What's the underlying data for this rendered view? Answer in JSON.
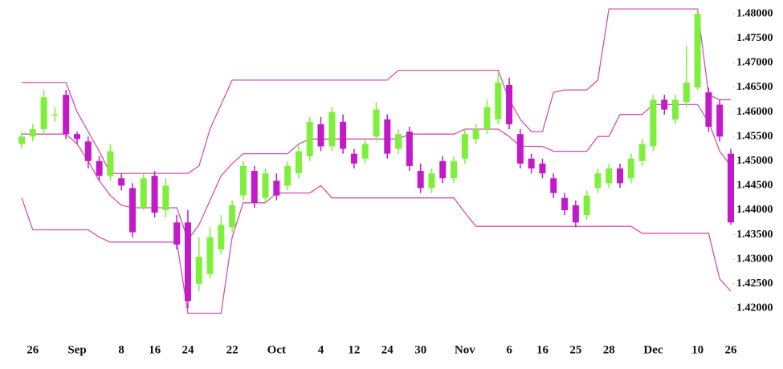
{
  "chart_data": {
    "type": "candlestick",
    "categories": [
      null,
      "26",
      null,
      null,
      null,
      "Sep",
      null,
      null,
      null,
      "8",
      null,
      null,
      "16",
      null,
      null,
      "24",
      null,
      null,
      null,
      "22",
      null,
      null,
      null,
      "Oct",
      null,
      null,
      null,
      "4",
      null,
      null,
      "12",
      null,
      null,
      "24",
      null,
      null,
      "30",
      null,
      null,
      null,
      "Nov",
      null,
      null,
      null,
      "6",
      null,
      null,
      "16",
      null,
      null,
      "25",
      null,
      null,
      "28",
      null,
      null,
      null,
      "Dec",
      null,
      null,
      null,
      "10",
      null,
      null,
      "26"
    ],
    "open": [
      1.4535,
      1.455,
      1.4565,
      1.4595,
      1.4635,
      1.4555,
      1.454,
      1.45,
      1.447,
      1.4465,
      1.4445,
      1.4405,
      1.447,
      1.44,
      1.4375,
      1.4375,
      1.425,
      1.427,
      1.432,
      1.4365,
      1.443,
      1.448,
      1.4425,
      1.446,
      1.445,
      1.4475,
      1.451,
      1.4575,
      1.453,
      1.458,
      1.4515,
      1.4505,
      1.455,
      1.4585,
      1.4525,
      1.456,
      1.448,
      1.4445,
      1.45,
      1.4465,
      1.4505,
      1.4545,
      1.4565,
      1.4585,
      1.4655,
      1.4555,
      1.4505,
      1.4495,
      1.4465,
      1.4425,
      1.441,
      1.439,
      1.4445,
      1.4455,
      1.4485,
      1.4465,
      1.45,
      1.453,
      1.4625,
      1.4585,
      1.462,
      1.465,
      1.464,
      1.4615,
      1.4515
    ],
    "high": [
      1.456,
      1.4575,
      1.4645,
      1.461,
      1.4645,
      1.456,
      1.455,
      1.451,
      1.4535,
      1.4475,
      1.4455,
      1.4475,
      1.448,
      1.4465,
      1.439,
      1.44,
      1.4345,
      1.4365,
      1.439,
      1.442,
      1.45,
      1.449,
      1.4485,
      1.4475,
      1.45,
      1.4535,
      1.459,
      1.459,
      1.461,
      1.4595,
      1.4525,
      1.4545,
      1.462,
      1.4595,
      1.4565,
      1.457,
      1.4495,
      1.4485,
      1.451,
      1.451,
      1.4565,
      1.4575,
      1.4625,
      1.468,
      1.467,
      1.4565,
      1.4515,
      1.4505,
      1.4475,
      1.4435,
      1.442,
      1.444,
      1.4485,
      1.4495,
      1.4495,
      1.4515,
      1.4545,
      1.4635,
      1.4635,
      1.4635,
      1.4735,
      1.4805,
      1.465,
      1.4625,
      1.4525
    ],
    "low": [
      1.4525,
      1.454,
      1.4555,
      1.458,
      1.4545,
      1.4535,
      1.4485,
      1.446,
      1.446,
      1.444,
      1.4345,
      1.44,
      1.4385,
      1.4385,
      1.432,
      1.42,
      1.4235,
      1.426,
      1.431,
      1.4355,
      1.442,
      1.4405,
      1.4415,
      1.442,
      1.444,
      1.4465,
      1.45,
      1.452,
      1.452,
      1.4515,
      1.4485,
      1.4495,
      1.454,
      1.4505,
      1.4515,
      1.448,
      1.4435,
      1.4435,
      1.4455,
      1.4455,
      1.4495,
      1.4535,
      1.4555,
      1.4575,
      1.4565,
      1.4485,
      1.4475,
      1.4465,
      1.4425,
      1.439,
      1.4365,
      1.438,
      1.4435,
      1.4445,
      1.4445,
      1.4455,
      1.449,
      1.452,
      1.4595,
      1.4575,
      1.461,
      1.4645,
      1.456,
      1.454,
      1.437
    ],
    "close": [
      1.455,
      1.4565,
      1.463,
      1.4595,
      1.4555,
      1.4545,
      1.45,
      1.447,
      1.452,
      1.445,
      1.4355,
      1.4465,
      1.4395,
      1.445,
      1.433,
      1.4215,
      1.4305,
      1.4345,
      1.437,
      1.441,
      1.449,
      1.4415,
      1.4475,
      1.443,
      1.449,
      1.452,
      1.458,
      1.453,
      1.46,
      1.4525,
      1.4495,
      1.4535,
      1.4605,
      1.4515,
      1.4555,
      1.449,
      1.4445,
      1.4475,
      1.4465,
      1.45,
      1.4555,
      1.4565,
      1.461,
      1.466,
      1.4575,
      1.4495,
      1.4485,
      1.4475,
      1.4435,
      1.44,
      1.4375,
      1.443,
      1.4475,
      1.4485,
      1.4455,
      1.4505,
      1.4535,
      1.4625,
      1.4605,
      1.4625,
      1.466,
      1.48,
      1.457,
      1.455,
      1.4375
    ],
    "up_color": "#7ef03c",
    "down_color": "#c21ac8",
    "lines": [
      {
        "color": "#d64fb0",
        "values": [
          1.466,
          1.466,
          1.466,
          1.466,
          1.466,
          1.46,
          1.456,
          1.452,
          1.4475,
          1.4475,
          1.4475,
          1.4475,
          1.4475,
          1.4475,
          1.4475,
          1.4475,
          1.449,
          1.4565,
          1.4615,
          1.4665,
          1.4665,
          1.4665,
          1.4665,
          1.4665,
          1.4665,
          1.4665,
          1.4665,
          1.4665,
          1.4665,
          1.4665,
          1.4665,
          1.4665,
          1.4665,
          1.4665,
          1.4685,
          1.4685,
          1.4685,
          1.4685,
          1.4685,
          1.4685,
          1.4685,
          1.4685,
          1.4685,
          1.4685,
          1.4625,
          1.4585,
          1.456,
          1.456,
          1.464,
          1.4645,
          1.4645,
          1.4645,
          1.4665,
          1.481,
          1.481,
          1.481,
          1.481,
          1.481,
          1.481,
          1.481,
          1.481,
          1.481,
          1.4635,
          1.4625,
          1.4625
        ]
      },
      {
        "color": "#d64fb0",
        "values": [
          1.4555,
          1.4555,
          1.4555,
          1.4555,
          1.4555,
          1.4535,
          1.45,
          1.446,
          1.443,
          1.441,
          1.4405,
          1.4405,
          1.4405,
          1.4405,
          1.4405,
          1.434,
          1.437,
          1.442,
          1.447,
          1.4495,
          1.4515,
          1.4515,
          1.4515,
          1.4515,
          1.4515,
          1.4535,
          1.4545,
          1.4545,
          1.4545,
          1.4545,
          1.4545,
          1.4545,
          1.4545,
          1.4545,
          1.4545,
          1.4555,
          1.4555,
          1.4555,
          1.4555,
          1.4555,
          1.4565,
          1.4565,
          1.4565,
          1.4565,
          1.455,
          1.453,
          1.453,
          1.453,
          1.452,
          1.452,
          1.452,
          1.452,
          1.455,
          1.455,
          1.4595,
          1.4595,
          1.4595,
          1.4615,
          1.4615,
          1.4615,
          1.4615,
          1.4615,
          1.458,
          1.452,
          1.449
        ]
      },
      {
        "color": "#d64fb0",
        "values": [
          1.4425,
          1.436,
          1.436,
          1.436,
          1.436,
          1.436,
          1.436,
          1.4345,
          1.4335,
          1.4335,
          1.4335,
          1.4335,
          1.4335,
          1.4335,
          1.4335,
          1.419,
          1.419,
          1.419,
          1.419,
          1.4345,
          1.4415,
          1.4415,
          1.4415,
          1.4435,
          1.4435,
          1.4435,
          1.4435,
          1.445,
          1.4425,
          1.4425,
          1.4425,
          1.4425,
          1.4425,
          1.4425,
          1.4425,
          1.4425,
          1.4425,
          1.4425,
          1.4425,
          1.4425,
          1.4395,
          1.4367,
          1.4367,
          1.4367,
          1.4367,
          1.4367,
          1.4367,
          1.4367,
          1.4367,
          1.4367,
          1.4367,
          1.4367,
          1.4367,
          1.4367,
          1.4367,
          1.4367,
          1.4353,
          1.4353,
          1.4353,
          1.4353,
          1.4353,
          1.4353,
          1.4353,
          1.426,
          1.4235
        ]
      }
    ],
    "ylim": [
      1.415,
      1.482
    ],
    "yticks": [
      {
        "value": 1.42,
        "label": "1.42000"
      },
      {
        "value": 1.425,
        "label": "1.42500"
      },
      {
        "value": 1.43,
        "label": "1.43000"
      },
      {
        "value": 1.435,
        "label": "1.43500"
      },
      {
        "value": 1.44,
        "label": "1.44000"
      },
      {
        "value": 1.445,
        "label": "1.44500"
      },
      {
        "value": 1.45,
        "label": "1.45000"
      },
      {
        "value": 1.455,
        "label": "1.45500"
      },
      {
        "value": 1.46,
        "label": "1.46000"
      },
      {
        "value": 1.465,
        "label": "1.46500"
      },
      {
        "value": 1.47,
        "label": "1.47000"
      },
      {
        "value": 1.475,
        "label": "1.47500"
      },
      {
        "value": 1.48,
        "label": "1.48000"
      }
    ],
    "grid": false
  }
}
